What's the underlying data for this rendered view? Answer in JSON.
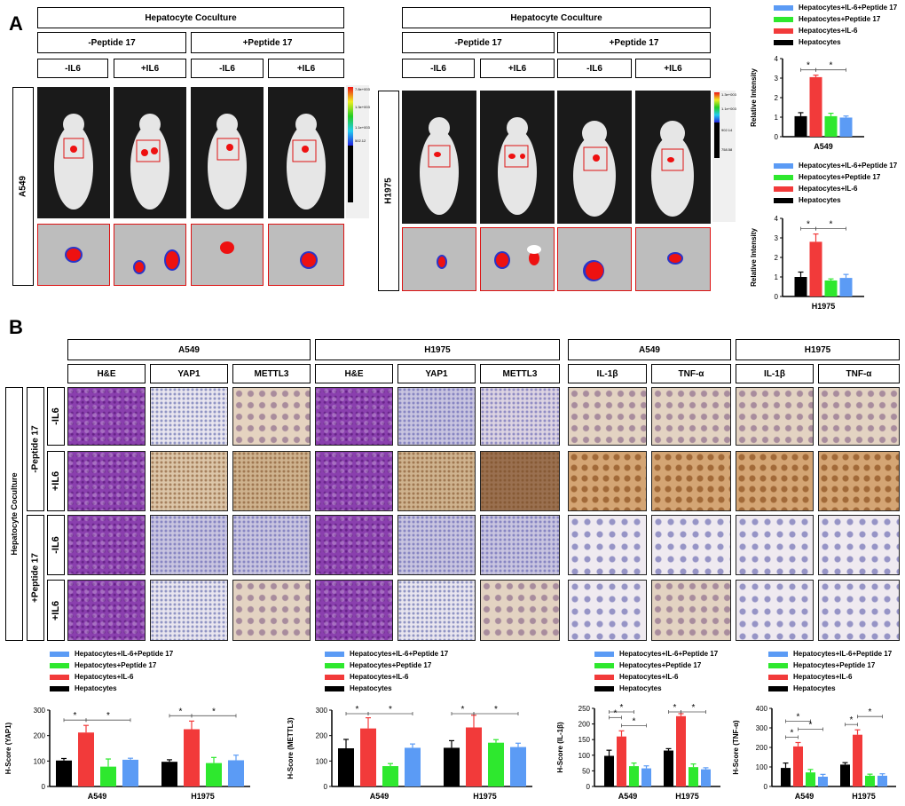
{
  "panelA": {
    "label": "A",
    "coculture": "Hepatocyte Coculture",
    "peptide_minus": "-Peptide 17",
    "peptide_plus": "+Peptide 17",
    "il6_minus": "-IL6",
    "il6_plus": "+IL6",
    "cell_left": "A549",
    "cell_right": "H1975",
    "colorbar_left": [
      "7.8e+003",
      "1.3e+003",
      "1.1e+003",
      "502.12"
    ],
    "colorbar_right": [
      "1.3e+003",
      "1.1e+003",
      "902.14",
      "758.58"
    ]
  },
  "panelB": {
    "label": "B",
    "groups": [
      "A549",
      "H1975",
      "A549",
      "H1975"
    ],
    "stains_main": [
      "H&E",
      "YAP1",
      "METTL3"
    ],
    "stains_cyt": [
      "IL-1β",
      "TNF-α"
    ],
    "side_title": "Hepatocyte Coculture",
    "pep_minus": "-Peptide 17",
    "pep_plus": "+Peptide 17",
    "il6_minus": "-IL6",
    "il6_plus": "+IL6"
  },
  "legend": {
    "items": [
      "Hepatocytes+IL-6+Peptide 17",
      "Hepatocytes+Peptide 17",
      "Hepatocytes+IL-6",
      "Hepatocytes"
    ],
    "colors": [
      "#5b9bf5",
      "#2ee82e",
      "#f23a3a",
      "#000000"
    ]
  },
  "star": "*",
  "chart_data": [
    {
      "type": "bar",
      "ylabel": "Relative Intensity",
      "categories": [
        "A549"
      ],
      "ylim": [
        0,
        4
      ],
      "yticks": [
        0,
        1,
        2,
        3,
        4
      ],
      "series": [
        {
          "name": "Hepatocytes",
          "values": [
            1.05
          ]
        },
        {
          "name": "Hepatocytes+IL-6",
          "values": [
            3.05
          ]
        },
        {
          "name": "Hepatocytes+Peptide 17",
          "values": [
            1.05
          ]
        },
        {
          "name": "Hepatocytes+IL-6+Peptide 17",
          "values": [
            0.98
          ]
        }
      ],
      "errors": [
        [
          0.18
        ],
        [
          0.1
        ],
        [
          0.15
        ],
        [
          0.08
        ]
      ]
    },
    {
      "type": "bar",
      "ylabel": "Relative Intensity",
      "categories": [
        "H1975"
      ],
      "ylim": [
        0,
        4
      ],
      "yticks": [
        0,
        1,
        2,
        3,
        4
      ],
      "series": [
        {
          "name": "Hepatocytes",
          "values": [
            1.0
          ]
        },
        {
          "name": "Hepatocytes+IL-6",
          "values": [
            2.8
          ]
        },
        {
          "name": "Hepatocytes+Peptide 17",
          "values": [
            0.82
          ]
        },
        {
          "name": "Hepatocytes+IL-6+Peptide 17",
          "values": [
            0.95
          ]
        }
      ],
      "errors": [
        [
          0.25
        ],
        [
          0.4
        ],
        [
          0.08
        ],
        [
          0.18
        ]
      ]
    },
    {
      "type": "bar",
      "ylabel": "H-Score (YAP1)",
      "categories": [
        "A549",
        "H1975"
      ],
      "ylim": [
        0,
        300
      ],
      "yticks": [
        0,
        100,
        200,
        300
      ],
      "series": [
        {
          "name": "Hepatocytes",
          "values": [
            102,
            97
          ]
        },
        {
          "name": "Hepatocytes+IL-6",
          "values": [
            212,
            225
          ]
        },
        {
          "name": "Hepatocytes+Peptide 17",
          "values": [
            78,
            92
          ]
        },
        {
          "name": "Hepatocytes+IL-6+Peptide 17",
          "values": [
            105,
            103
          ]
        }
      ],
      "errors": [
        [
          8,
          8
        ],
        [
          28,
          32
        ],
        [
          30,
          22
        ],
        [
          6,
          20
        ]
      ]
    },
    {
      "type": "bar",
      "ylabel": "H-Score (METTL3)",
      "categories": [
        "A549",
        "H1975"
      ],
      "ylim": [
        0,
        300
      ],
      "yticks": [
        0,
        100,
        200,
        300
      ],
      "series": [
        {
          "name": "Hepatocytes",
          "values": [
            150,
            152
          ]
        },
        {
          "name": "Hepatocytes+IL-6",
          "values": [
            228,
            232
          ]
        },
        {
          "name": "Hepatocytes+Peptide 17",
          "values": [
            80,
            172
          ]
        },
        {
          "name": "Hepatocytes+IL-6+Peptide 17",
          "values": [
            152,
            155
          ]
        }
      ],
      "errors": [
        [
          35,
          28
        ],
        [
          42,
          48
        ],
        [
          10,
          12
        ],
        [
          15,
          15
        ]
      ]
    },
    {
      "type": "bar",
      "ylabel": "H-Score (IL-1β)",
      "categories": [
        "A549",
        "H1975"
      ],
      "ylim": [
        0,
        250
      ],
      "yticks": [
        0,
        50,
        100,
        150,
        200,
        250
      ],
      "series": [
        {
          "name": "Hepatocytes",
          "values": [
            98,
            115
          ]
        },
        {
          "name": "Hepatocytes+IL-6",
          "values": [
            160,
            225
          ]
        },
        {
          "name": "Hepatocytes+Peptide 17",
          "values": [
            65,
            62
          ]
        },
        {
          "name": "Hepatocytes+IL-6+Peptide 17",
          "values": [
            58,
            55
          ]
        }
      ],
      "errors": [
        [
          18,
          6
        ],
        [
          18,
          8
        ],
        [
          10,
          10
        ],
        [
          8,
          5
        ]
      ]
    },
    {
      "type": "bar",
      "ylabel": "H-Score (TNF-α)",
      "categories": [
        "A549",
        "H1975"
      ],
      "ylim": [
        0,
        400
      ],
      "yticks": [
        0,
        100,
        200,
        300,
        400
      ],
      "series": [
        {
          "name": "Hepatocytes",
          "values": [
            95,
            112
          ]
        },
        {
          "name": "Hepatocytes+IL-6",
          "values": [
            205,
            265
          ]
        },
        {
          "name": "Hepatocytes+Peptide 17",
          "values": [
            72,
            55
          ]
        },
        {
          "name": "Hepatocytes+IL-6+Peptide 17",
          "values": [
            50,
            55
          ]
        }
      ],
      "errors": [
        [
          25,
          10
        ],
        [
          20,
          25
        ],
        [
          15,
          8
        ],
        [
          12,
          10
        ]
      ]
    }
  ]
}
